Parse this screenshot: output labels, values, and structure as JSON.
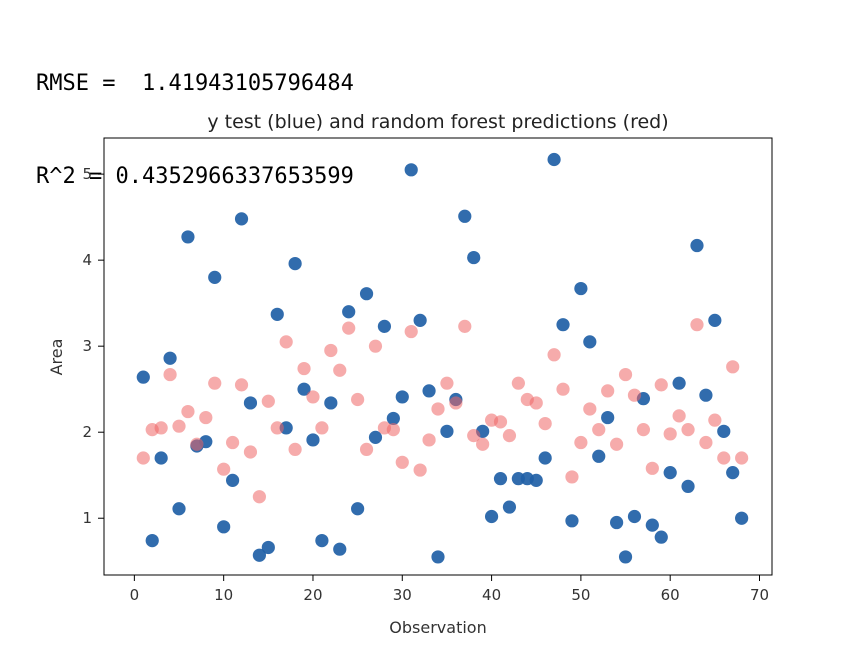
{
  "metrics": {
    "rmse_line": "RMSE =  1.41943105796484",
    "r2_line": "R^2 = 0.4352966337653599"
  },
  "chart_data": {
    "type": "scatter",
    "title": "y test (blue) and random forest predictions (red)",
    "xlabel": "Observation",
    "ylabel": "Area",
    "xlim": [
      -3.4,
      71.4
    ],
    "ylim": [
      0.34,
      5.42
    ],
    "xticks": [
      0,
      10,
      20,
      30,
      40,
      50,
      60,
      70
    ],
    "yticks": [
      1,
      2,
      3,
      4,
      5
    ],
    "grid": false,
    "colors": {
      "test": "#1f5fa6",
      "pred": "#ee6666"
    },
    "series": [
      {
        "key": "test",
        "x": [
          1,
          2,
          3,
          4,
          5,
          6,
          7,
          8,
          9,
          10,
          11,
          12,
          13,
          14,
          15,
          16,
          17,
          18,
          19,
          20,
          21,
          22,
          23,
          24,
          25,
          26,
          27,
          28,
          29,
          30,
          31,
          32,
          33,
          34,
          35,
          36,
          37,
          38,
          39,
          40,
          41,
          42,
          43,
          44,
          45,
          46,
          47,
          48,
          49,
          50,
          51,
          52,
          53,
          54,
          55,
          56,
          57,
          58,
          59,
          60,
          61,
          62,
          63,
          64,
          65,
          66,
          67,
          68
        ],
        "y": [
          2.64,
          0.74,
          1.7,
          2.86,
          1.11,
          4.27,
          1.84,
          1.89,
          3.8,
          0.9,
          1.44,
          4.48,
          2.34,
          0.57,
          0.66,
          3.37,
          2.05,
          3.96,
          2.5,
          1.91,
          0.74,
          2.34,
          0.64,
          3.4,
          1.11,
          3.61,
          1.94,
          3.23,
          2.16,
          2.41,
          5.05,
          3.3,
          2.48,
          0.55,
          2.01,
          2.38,
          4.51,
          4.03,
          2.01,
          1.02,
          1.46,
          1.13,
          1.46,
          1.46,
          1.44,
          1.7,
          5.17,
          3.25,
          0.97,
          3.67,
          3.05,
          1.72,
          2.17,
          0.95,
          0.55,
          1.02,
          2.39,
          0.92,
          0.78,
          1.53,
          2.57,
          1.37,
          4.17,
          2.43,
          3.3,
          2.01,
          1.53,
          1.0
        ]
      },
      {
        "key": "pred",
        "x": [
          1,
          2,
          3,
          4,
          5,
          6,
          7,
          8,
          9,
          10,
          11,
          12,
          13,
          14,
          15,
          16,
          17,
          18,
          19,
          20,
          21,
          22,
          23,
          24,
          25,
          26,
          27,
          28,
          29,
          30,
          31,
          32,
          33,
          34,
          35,
          36,
          37,
          38,
          39,
          40,
          41,
          42,
          43,
          44,
          45,
          46,
          47,
          48,
          49,
          50,
          51,
          52,
          53,
          54,
          55,
          56,
          57,
          58,
          59,
          60,
          61,
          62,
          63,
          64,
          65,
          66,
          67,
          68
        ],
        "y": [
          1.7,
          2.03,
          2.05,
          2.67,
          2.07,
          2.24,
          1.86,
          2.17,
          2.57,
          1.57,
          1.88,
          2.55,
          1.77,
          1.25,
          2.36,
          2.05,
          3.05,
          1.8,
          2.74,
          2.41,
          2.05,
          2.95,
          2.72,
          3.21,
          2.38,
          1.8,
          3.0,
          2.05,
          2.03,
          1.65,
          3.17,
          1.56,
          1.91,
          2.27,
          2.57,
          2.34,
          3.23,
          1.96,
          1.86,
          2.14,
          2.12,
          1.96,
          2.57,
          2.38,
          2.34,
          2.1,
          2.9,
          2.5,
          1.48,
          1.88,
          2.27,
          2.03,
          2.48,
          1.86,
          2.67,
          2.43,
          2.03,
          1.58,
          2.55,
          1.98,
          2.19,
          2.03,
          3.25,
          1.88,
          2.14,
          1.7,
          2.76,
          1.7
        ]
      }
    ]
  }
}
